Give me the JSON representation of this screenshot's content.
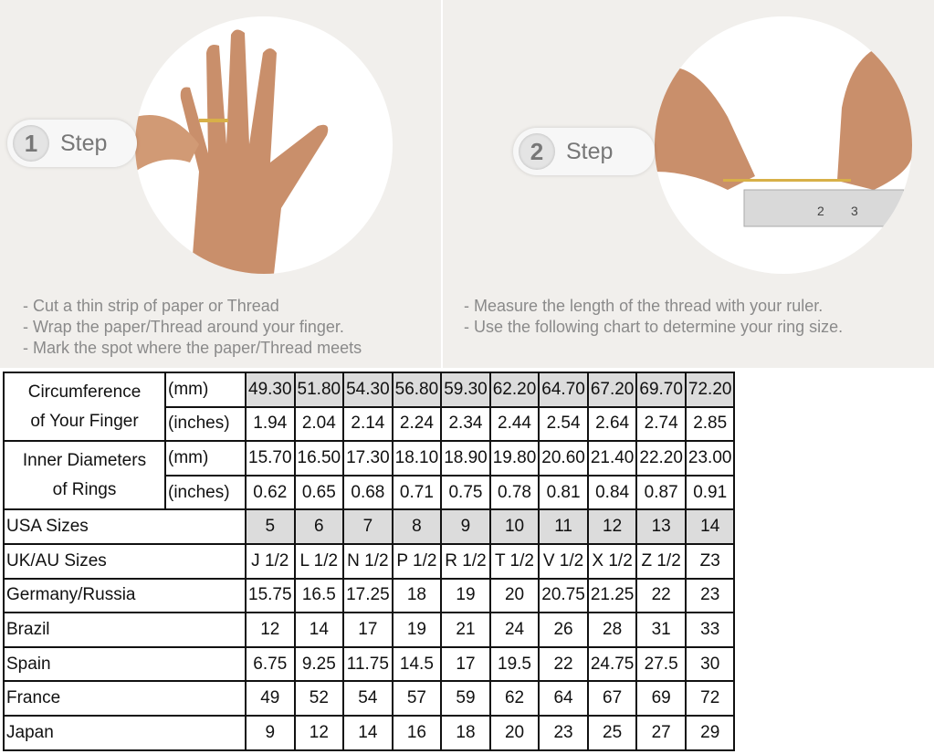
{
  "step1": {
    "number": "1",
    "label": "Step",
    "bullets": [
      "- Cut a thin strip of paper or Thread",
      "- Wrap the paper/Thread around your finger.",
      "- Mark the spot where the paper/Thread meets"
    ]
  },
  "step2": {
    "number": "2",
    "label": "Step",
    "bullets": [
      "- Measure the length of the thread with your ruler.",
      "- Use the following chart to determine your ring size."
    ]
  },
  "table": {
    "circumference": {
      "label_line1": "Circumference",
      "label_line2": "of Your Finger",
      "unit_mm": "(mm)",
      "unit_in": "(inches)",
      "mm": [
        "49.30",
        "51.80",
        "54.30",
        "56.80",
        "59.30",
        "62.20",
        "64.70",
        "67.20",
        "69.70",
        "72.20"
      ],
      "inches": [
        "1.94",
        "2.04",
        "2.14",
        "2.24",
        "2.34",
        "2.44",
        "2.54",
        "2.64",
        "2.74",
        "2.85"
      ]
    },
    "inner": {
      "label_line1": "Inner Diameters",
      "label_line2": "of Rings",
      "unit_mm": "(mm)",
      "unit_in": "(inches)",
      "mm": [
        "15.70",
        "16.50",
        "17.30",
        "18.10",
        "18.90",
        "19.80",
        "20.60",
        "21.40",
        "22.20",
        "23.00"
      ],
      "inches": [
        "0.62",
        "0.65",
        "0.68",
        "0.71",
        "0.75",
        "0.78",
        "0.81",
        "0.84",
        "0.87",
        "0.91"
      ]
    },
    "rows": [
      {
        "label": "USA Sizes",
        "values": [
          "5",
          "6",
          "7",
          "8",
          "9",
          "10",
          "11",
          "12",
          "13",
          "14"
        ],
        "shaded": true
      },
      {
        "label": "UK/AU Sizes",
        "values": [
          "J 1/2",
          "L 1/2",
          "N 1/2",
          "P 1/2",
          "R 1/2",
          "T 1/2",
          "V 1/2",
          "X 1/2",
          "Z 1/2",
          "Z3"
        ]
      },
      {
        "label": "Germany/Russia",
        "values": [
          "15.75",
          "16.5",
          "17.25",
          "18",
          "19",
          "20",
          "20.75",
          "21.25",
          "22",
          "23"
        ]
      },
      {
        "label": "Brazil",
        "values": [
          "12",
          "14",
          "17",
          "19",
          "21",
          "24",
          "26",
          "28",
          "31",
          "33"
        ]
      },
      {
        "label": "Spain",
        "values": [
          "6.75",
          "9.25",
          "11.75",
          "14.5",
          "17",
          "19.5",
          "22",
          "24.75",
          "27.5",
          "30"
        ]
      },
      {
        "label": "France",
        "values": [
          "49",
          "52",
          "54",
          "57",
          "59",
          "62",
          "64",
          "67",
          "69",
          "72"
        ]
      },
      {
        "label": "Japan",
        "values": [
          "9",
          "12",
          "14",
          "16",
          "18",
          "20",
          "23",
          "25",
          "27",
          "29"
        ]
      }
    ]
  },
  "colors": {
    "shade": "#dcdcdc",
    "background": "#f1efec",
    "text_gray": "#8a8a8a"
  }
}
